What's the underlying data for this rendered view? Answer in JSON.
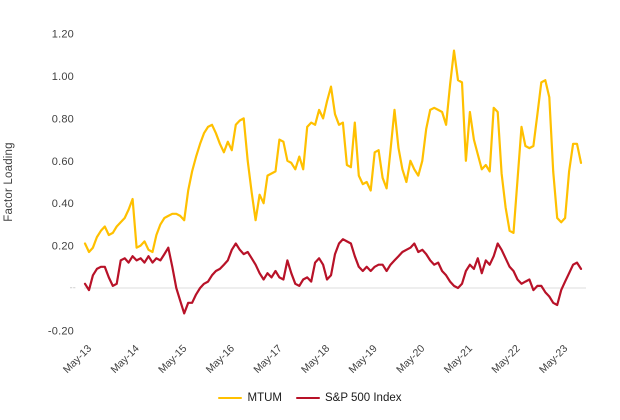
{
  "chart": {
    "ylabel": "Factor Loading"
  },
  "colors": {
    "background": "#FFFFFF",
    "grid_zero_line": "#DCDCDC",
    "tick_text": "#404040",
    "zero_tick_text": "#C0C0C0",
    "axis_title_text": "#404040",
    "legend_text": "#1A1A1A",
    "mtum_line": "#FFC000",
    "sp500_line": "#B81228"
  },
  "chart_data": {
    "type": "line",
    "title": "",
    "xlabel": "",
    "ylabel": "Factor Loading",
    "x_unit": "month",
    "x_start_label": "May-13",
    "x_end_month": "Oct-23",
    "x_tick_labels": [
      "May-13",
      "May-14",
      "May-15",
      "May-16",
      "May-17",
      "May-18",
      "May-19",
      "May-20",
      "May-21",
      "May-22",
      "May-23"
    ],
    "x_tick_month_indices": [
      0,
      12,
      24,
      36,
      48,
      60,
      72,
      84,
      96,
      108,
      120
    ],
    "ylim": [
      -0.2,
      1.2
    ],
    "y_ticks": [
      1.2,
      1.0,
      0.8,
      0.6,
      0.4,
      0.2,
      0,
      -0.2
    ],
    "y_tick_labels": [
      "1.20",
      "1.00",
      "0.80",
      "0.60",
      "0.40",
      "0.20",
      "--",
      "-0.20"
    ],
    "grid": "horizontal-zero-line-only",
    "legend_position": "bottom-center",
    "series": [
      {
        "name": "MTUM",
        "color": "#FFC000",
        "values": [
          0.21,
          0.17,
          0.19,
          0.24,
          0.27,
          0.29,
          0.25,
          0.26,
          0.29,
          0.31,
          0.33,
          0.37,
          0.42,
          0.19,
          0.2,
          0.22,
          0.18,
          0.17,
          0.25,
          0.3,
          0.33,
          0.34,
          0.35,
          0.35,
          0.34,
          0.32,
          0.46,
          0.55,
          0.62,
          0.68,
          0.73,
          0.76,
          0.77,
          0.73,
          0.68,
          0.64,
          0.69,
          0.65,
          0.77,
          0.79,
          0.8,
          0.6,
          0.45,
          0.32,
          0.44,
          0.4,
          0.53,
          0.54,
          0.55,
          0.7,
          0.69,
          0.6,
          0.59,
          0.56,
          0.62,
          0.56,
          0.76,
          0.78,
          0.77,
          0.84,
          0.8,
          0.88,
          0.95,
          0.82,
          0.77,
          0.78,
          0.58,
          0.57,
          0.78,
          0.53,
          0.49,
          0.5,
          0.46,
          0.64,
          0.65,
          0.52,
          0.47,
          0.65,
          0.84,
          0.66,
          0.56,
          0.5,
          0.6,
          0.56,
          0.53,
          0.6,
          0.75,
          0.84,
          0.85,
          0.84,
          0.83,
          0.77,
          0.96,
          1.12,
          0.98,
          0.97,
          0.6,
          0.83,
          0.7,
          0.63,
          0.56,
          0.58,
          0.55,
          0.85,
          0.83,
          0.54,
          0.38,
          0.27,
          0.26,
          0.51,
          0.76,
          0.67,
          0.66,
          0.67,
          0.82,
          0.97,
          0.98,
          0.9,
          0.55,
          0.33,
          0.31,
          0.33,
          0.55,
          0.68,
          0.68,
          0.59
        ]
      },
      {
        "name": "S&P 500 Index",
        "color": "#B81228",
        "values": [
          0.02,
          -0.01,
          0.06,
          0.09,
          0.1,
          0.1,
          0.05,
          0.01,
          0.02,
          0.13,
          0.14,
          0.12,
          0.15,
          0.13,
          0.14,
          0.12,
          0.15,
          0.12,
          0.14,
          0.13,
          0.16,
          0.19,
          0.1,
          0.0,
          -0.06,
          -0.12,
          -0.07,
          -0.07,
          -0.03,
          0.0,
          0.02,
          0.03,
          0.06,
          0.08,
          0.09,
          0.11,
          0.13,
          0.18,
          0.21,
          0.18,
          0.16,
          0.17,
          0.14,
          0.11,
          0.07,
          0.04,
          0.07,
          0.05,
          0.08,
          0.05,
          0.04,
          0.13,
          0.07,
          0.02,
          0.01,
          0.04,
          0.05,
          0.03,
          0.12,
          0.14,
          0.11,
          0.04,
          0.06,
          0.16,
          0.21,
          0.23,
          0.22,
          0.21,
          0.15,
          0.1,
          0.08,
          0.1,
          0.08,
          0.1,
          0.11,
          0.11,
          0.08,
          0.11,
          0.13,
          0.15,
          0.17,
          0.18,
          0.19,
          0.21,
          0.17,
          0.18,
          0.16,
          0.13,
          0.11,
          0.12,
          0.08,
          0.06,
          0.03,
          0.01,
          0.0,
          0.02,
          0.08,
          0.11,
          0.09,
          0.14,
          0.07,
          0.13,
          0.11,
          0.15,
          0.21,
          0.18,
          0.14,
          0.1,
          0.08,
          0.04,
          0.02,
          0.03,
          0.04,
          -0.01,
          0.01,
          0.01,
          -0.02,
          -0.04,
          -0.07,
          -0.08,
          -0.01,
          0.03,
          0.07,
          0.11,
          0.12,
          0.09
        ]
      }
    ]
  }
}
